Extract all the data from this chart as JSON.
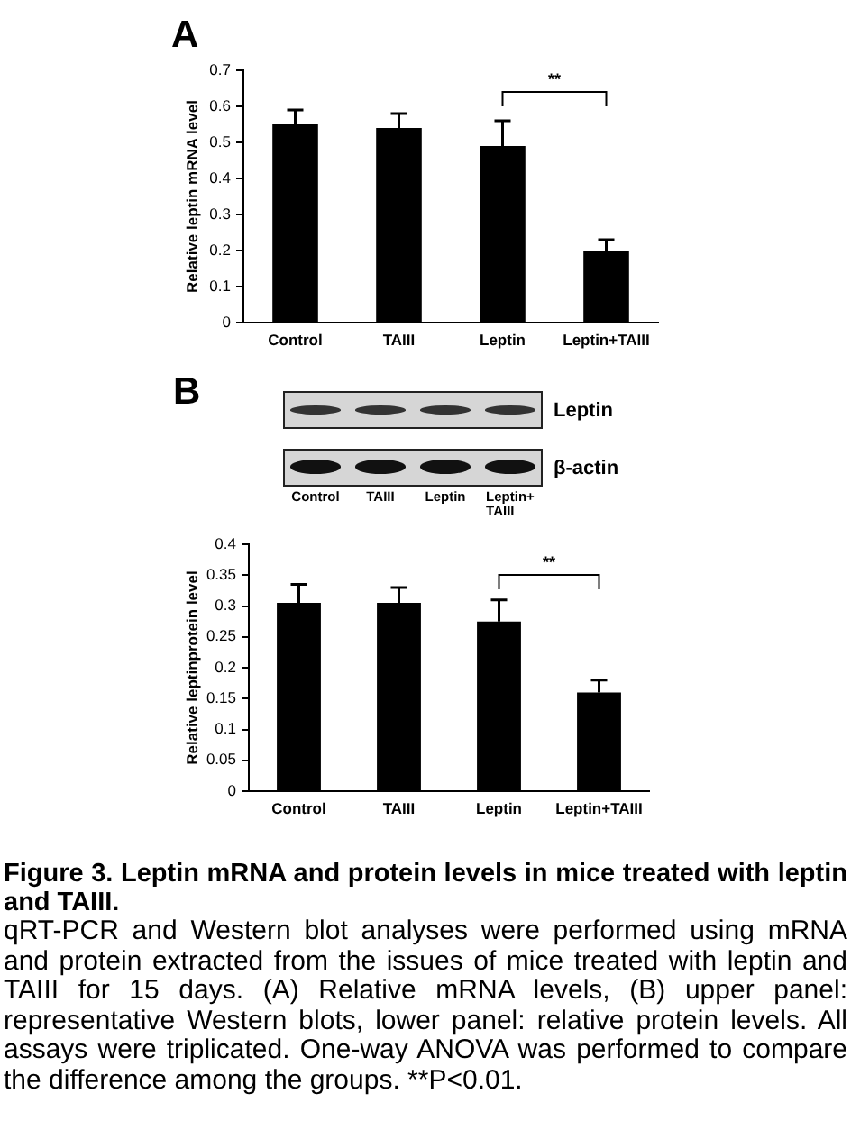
{
  "chart_data": [
    {
      "type": "bar",
      "title": "A",
      "categories": [
        "Control",
        "TAIII",
        "Leptin",
        "Leptin+TAIII"
      ],
      "values": [
        0.55,
        0.54,
        0.49,
        0.2
      ],
      "color": "#000000",
      "errors": [
        [
          0.55,
          0.59
        ],
        [
          0.54,
          0.58
        ],
        [
          0.49,
          0.56
        ],
        [
          0.2,
          0.23
        ]
      ],
      "ylabel": "Relative leptin mRNA level",
      "ylim": [
        0,
        0.7
      ],
      "yticks": [
        0,
        0.1,
        0.2,
        0.3,
        0.4,
        0.5,
        0.6,
        0.7
      ],
      "grid": false,
      "annotations": [
        "**"
      ]
    },
    {
      "type": "other",
      "title": "B",
      "categories": [
        "Control",
        "TAIII",
        "Leptin",
        "Leptin+ TAIII"
      ],
      "annotations": [
        "Leptin",
        "β-actin"
      ]
    },
    {
      "type": "bar",
      "categories": [
        "Control",
        "TAIII",
        "Leptin",
        "Leptin+TAIII"
      ],
      "values": [
        0.305,
        0.305,
        0.275,
        0.16
      ],
      "color": "#000000",
      "errors": [
        [
          0.305,
          0.335
        ],
        [
          0.305,
          0.33
        ],
        [
          0.275,
          0.31
        ],
        [
          0.16,
          0.18
        ]
      ],
      "ylabel": "Relative leptinprotein level",
      "ylim": [
        0,
        0.4
      ],
      "yticks": [
        0,
        0.05,
        0.1,
        0.15,
        0.2,
        0.25,
        0.3,
        0.35,
        0.4
      ],
      "grid": false,
      "annotations": [
        "**",
        "Figure 3. Leptin mRNA and protein levels in mice treated with leptin and TAIII.",
        "qRT-PCR and Western blot analyses were performed using mRNA and protein extracted from the issues of mice treated with leptin and TAIII for 15 days. (A) Relative mRNA levels, (B) upper panel: representative Western blots, lower panel: relative protein levels. All assays were triplicated. One-way ANOVA was performed to compare the difference among the groups. **P<0.01."
      ]
    }
  ]
}
